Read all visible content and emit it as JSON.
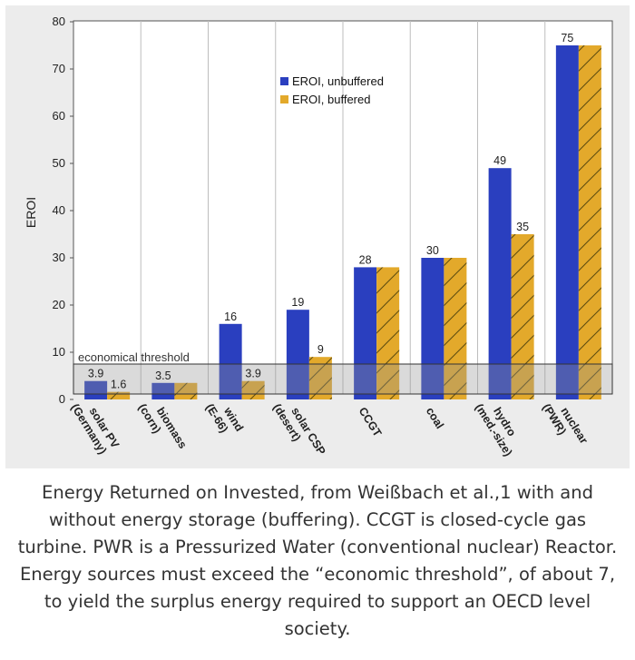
{
  "chart_data": {
    "type": "bar",
    "ylabel": "EROI",
    "ylim": [
      0,
      80
    ],
    "yticks": [
      0,
      10,
      20,
      30,
      40,
      50,
      60,
      70,
      80
    ],
    "grid": "vertical lines between categories",
    "legend_position": "top-center",
    "categories": [
      "solar PV\n(Germany)",
      "biomass\n(corn)",
      "wind\n(E-66)",
      "solar CSP\n(desert)",
      "CCGT",
      "coal",
      "hydro\n(med.-size)",
      "nuclear\n(PWR)"
    ],
    "series": [
      {
        "name": "EROI, unbuffered",
        "color": "#2a3fbf",
        "values": [
          3.9,
          3.5,
          16,
          19,
          28,
          30,
          49,
          75
        ],
        "labels": [
          "3.9",
          "3.5",
          "16",
          "19",
          "28",
          "30",
          "49",
          "75"
        ]
      },
      {
        "name": "EROI, buffered",
        "color": "#e3a92b",
        "values": [
          1.6,
          3.5,
          3.9,
          9,
          28,
          30,
          35,
          75
        ],
        "labels": [
          "1.6",
          "",
          "3.9",
          "9",
          "",
          "",
          "35",
          ""
        ]
      }
    ],
    "threshold": {
      "label": "economical threshold",
      "value": 7.5
    }
  },
  "caption": "Energy Returned on Invested, from Weißbach et al.,1 with and without energy storage (buffering).  CCGT is closed-cycle gas turbine.  PWR is a Pressurized Water (conventional nuclear) Reactor.  Energy sources must exceed the “economic threshold”, of about 7, to yield the surplus energy required to support an OECD level society."
}
